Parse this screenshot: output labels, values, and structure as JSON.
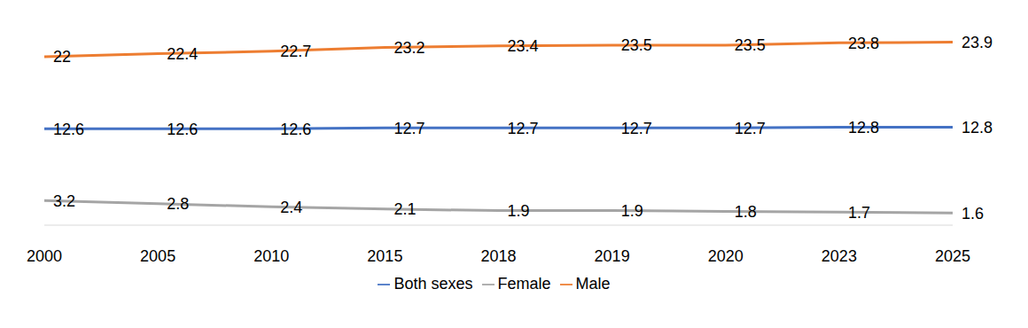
{
  "chart_data": {
    "type": "line",
    "categories": [
      "2000",
      "2005",
      "2010",
      "2015",
      "2018",
      "2019",
      "2020",
      "2023",
      "2025"
    ],
    "series": [
      {
        "name": "Both sexes",
        "color": "#4472c4",
        "values": [
          12.6,
          12.6,
          12.6,
          12.7,
          12.7,
          12.7,
          12.7,
          12.8,
          12.8
        ]
      },
      {
        "name": "Male",
        "color": "#ed7d31",
        "values": [
          22,
          22.4,
          22.7,
          23.2,
          23.4,
          23.5,
          23.5,
          23.8,
          23.9
        ]
      },
      {
        "name": "Female",
        "color": "#a5a5a5",
        "values": [
          3.2,
          2.8,
          2.4,
          2.1,
          1.9,
          1.9,
          1.8,
          1.7,
          1.6
        ]
      }
    ],
    "ylim": [
      0,
      25
    ],
    "data_labels": true,
    "tick_labels": "x",
    "legend": "bottom",
    "grid": false
  }
}
